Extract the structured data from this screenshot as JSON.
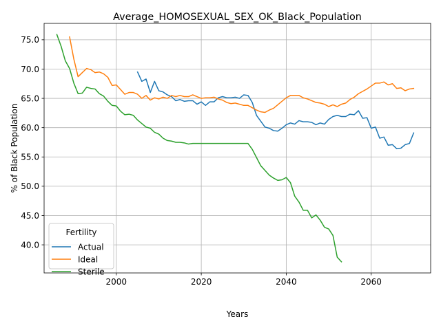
{
  "chart_data": {
    "type": "line",
    "title": "Average_HOMOSEXUAL_SEX_OK_Black_Population",
    "xlabel": "Years",
    "ylabel": "% of Black Population",
    "xlim": [
      1983,
      2074
    ],
    "ylim": [
      35.2,
      77.8
    ],
    "xticks": [
      2000,
      2020,
      2040,
      2060
    ],
    "yticks": [
      40,
      45,
      50,
      55,
      60,
      65,
      70,
      75
    ],
    "grid": true,
    "legend": {
      "title": "Fertility",
      "position": "lower-left"
    },
    "series": [
      {
        "name": "Actual",
        "color": "#1f77b4",
        "x": [
          2005,
          2006,
          2007,
          2008,
          2009,
          2010,
          2011,
          2012,
          2013,
          2014,
          2015,
          2016,
          2017,
          2018,
          2019,
          2020,
          2021,
          2022,
          2023,
          2024,
          2025,
          2026,
          2027,
          2028,
          2029,
          2030,
          2031,
          2032,
          2033,
          2034,
          2035,
          2036,
          2037,
          2038,
          2039,
          2040,
          2041,
          2042,
          2043,
          2044,
          2045,
          2046,
          2047,
          2048,
          2049,
          2050,
          2051,
          2052,
          2053,
          2054,
          2055,
          2056,
          2057,
          2058,
          2059,
          2060,
          2061,
          2062,
          2063,
          2064,
          2065,
          2066,
          2067,
          2068,
          2069,
          2070
        ],
        "y": [
          69.5,
          67.9,
          68.3,
          66.0,
          67.9,
          66.3,
          66.1,
          65.6,
          65.3,
          64.6,
          64.8,
          64.5,
          64.6,
          64.6,
          64.0,
          64.4,
          63.8,
          64.4,
          64.4,
          65.1,
          65.3,
          65.1,
          65.1,
          65.2,
          65.0,
          65.6,
          65.5,
          64.3,
          62.1,
          61.1,
          60.1,
          59.9,
          59.5,
          59.4,
          59.9,
          60.5,
          60.8,
          60.6,
          61.2,
          61.0,
          61.0,
          60.9,
          60.5,
          60.8,
          60.6,
          61.4,
          61.9,
          62.1,
          61.9,
          61.9,
          62.3,
          62.2,
          62.9,
          61.6,
          61.7,
          59.9,
          60.1,
          58.2,
          58.4,
          57.0,
          57.1,
          56.4,
          56.5,
          57.1,
          57.3,
          59.1
        ]
      },
      {
        "name": "Ideal",
        "color": "#ff7f0e",
        "x": [
          1989,
          1990,
          1991,
          1992,
          1993,
          1994,
          1995,
          1996,
          1997,
          1998,
          1999,
          2000,
          2001,
          2002,
          2003,
          2004,
          2005,
          2006,
          2007,
          2008,
          2009,
          2010,
          2011,
          2012,
          2013,
          2014,
          2015,
          2016,
          2017,
          2018,
          2019,
          2020,
          2021,
          2022,
          2023,
          2024,
          2025,
          2026,
          2027,
          2028,
          2029,
          2030,
          2031,
          2032,
          2033,
          2034,
          2035,
          2036,
          2037,
          2038,
          2039,
          2040,
          2041,
          2042,
          2043,
          2044,
          2045,
          2046,
          2047,
          2048,
          2049,
          2050,
          2051,
          2052,
          2053,
          2054,
          2055,
          2056,
          2057,
          2058,
          2059,
          2060,
          2061,
          2062,
          2063,
          2064,
          2065,
          2066,
          2067,
          2068,
          2069,
          2070
        ],
        "y": [
          75.5,
          71.7,
          68.7,
          69.4,
          70.1,
          69.9,
          69.4,
          69.5,
          69.2,
          68.6,
          67.2,
          67.3,
          66.5,
          65.7,
          66.0,
          66.0,
          65.7,
          65.0,
          65.5,
          64.7,
          65.1,
          64.9,
          65.2,
          65.0,
          65.5,
          65.3,
          65.5,
          65.3,
          65.3,
          65.6,
          65.3,
          65.0,
          65.1,
          65.1,
          65.2,
          64.9,
          64.7,
          64.3,
          64.1,
          64.2,
          64.0,
          63.8,
          63.8,
          63.4,
          63.0,
          62.7,
          62.6,
          63.0,
          63.3,
          63.9,
          64.5,
          65.1,
          65.5,
          65.5,
          65.5,
          65.1,
          64.9,
          64.6,
          64.3,
          64.2,
          64.0,
          63.6,
          63.9,
          63.6,
          64.0,
          64.2,
          64.8,
          65.2,
          65.8,
          66.2,
          66.6,
          67.1,
          67.6,
          67.6,
          67.8,
          67.3,
          67.5,
          66.7,
          66.8,
          66.3,
          66.6,
          66.7
        ]
      },
      {
        "name": "Sterile",
        "color": "#2ca02c",
        "x": [
          1986,
          1987,
          1988,
          1989,
          1990,
          1991,
          1992,
          1993,
          1994,
          1995,
          1996,
          1997,
          1998,
          1999,
          2000,
          2001,
          2002,
          2003,
          2004,
          2005,
          2006,
          2007,
          2008,
          2009,
          2010,
          2011,
          2012,
          2013,
          2014,
          2015,
          2016,
          2017,
          2018,
          2019,
          2020,
          2021,
          2022,
          2023,
          2024,
          2025,
          2026,
          2027,
          2028,
          2029,
          2030,
          2031,
          2032,
          2033,
          2034,
          2035,
          2036,
          2037,
          2038,
          2039,
          2040,
          2041,
          2042,
          2043,
          2044,
          2045,
          2046,
          2047,
          2048,
          2049,
          2050,
          2051,
          2052,
          2053
        ],
        "y": [
          75.9,
          73.9,
          71.4,
          70.1,
          67.6,
          65.8,
          65.9,
          66.9,
          66.7,
          66.6,
          65.8,
          65.4,
          64.5,
          63.8,
          63.7,
          62.8,
          62.2,
          62.3,
          62.1,
          61.3,
          60.7,
          60.1,
          59.9,
          59.2,
          58.9,
          58.2,
          57.8,
          57.7,
          57.5,
          57.5,
          57.4,
          57.2,
          57.3,
          57.3,
          57.3,
          57.3,
          57.3,
          57.3,
          57.3,
          57.3,
          57.3,
          57.3,
          57.3,
          57.3,
          57.3,
          57.3,
          56.3,
          54.9,
          53.5,
          52.7,
          51.9,
          51.4,
          51.0,
          51.1,
          51.5,
          50.6,
          48.3,
          47.3,
          45.9,
          45.9,
          44.6,
          45.1,
          44.2,
          43.0,
          42.7,
          41.6,
          37.9,
          37.1
        ]
      }
    ]
  }
}
